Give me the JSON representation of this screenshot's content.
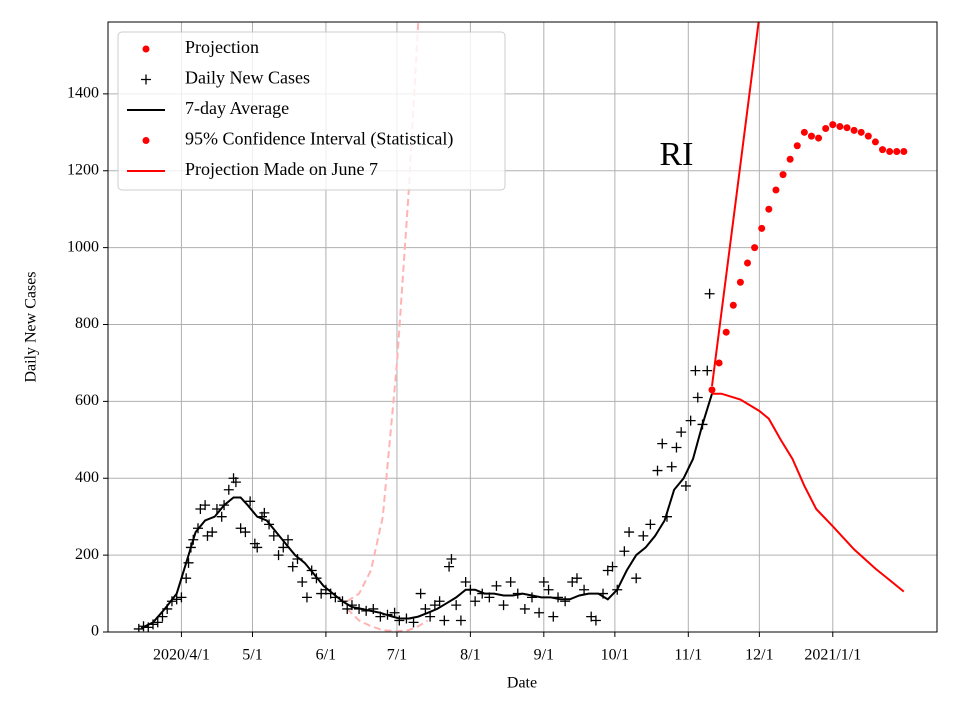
{
  "chart_data": {
    "type": "line",
    "xlabel": "Date",
    "ylabel": "Daily New Cases",
    "xlim": [
      "2020-03-01",
      "2021-02-14"
    ],
    "ylim": [
      0,
      1587
    ],
    "yticks": [
      0,
      200,
      400,
      600,
      800,
      1000,
      1200,
      1400
    ],
    "xticks": [
      {
        "value": "2020-04-01",
        "label": "2020/4/1"
      },
      {
        "value": "2020-05-01",
        "label": "5/1"
      },
      {
        "value": "2020-06-01",
        "label": "6/1"
      },
      {
        "value": "2020-07-01",
        "label": "7/1"
      },
      {
        "value": "2020-08-01",
        "label": "8/1"
      },
      {
        "value": "2020-09-01",
        "label": "9/1"
      },
      {
        "value": "2020-10-01",
        "label": "10/1"
      },
      {
        "value": "2020-11-01",
        "label": "11/1"
      },
      {
        "value": "2020-12-01",
        "label": "12/1"
      },
      {
        "value": "2021-01-01",
        "label": "2021/1/1"
      }
    ],
    "grid": true,
    "legend": "upper left",
    "annotations": [
      {
        "text": "RI",
        "x": "2020-10-27",
        "y": 1235
      }
    ],
    "series": [
      {
        "name": "Projection",
        "color": "#ff0000",
        "marker": "dot",
        "x": [
          "2020-11-11",
          "2020-11-14",
          "2020-11-17",
          "2020-11-20",
          "2020-11-23",
          "2020-11-26",
          "2020-11-29",
          "2020-12-02",
          "2020-12-05",
          "2020-12-08",
          "2020-12-11",
          "2020-12-14",
          "2020-12-17",
          "2020-12-20",
          "2020-12-23",
          "2020-12-26",
          "2020-12-29",
          "2021-01-01",
          "2021-01-04",
          "2021-01-07",
          "2021-01-10",
          "2021-01-13",
          "2021-01-16",
          "2021-01-19",
          "2021-01-22",
          "2021-01-25",
          "2021-01-28",
          "2021-01-31"
        ],
        "values": [
          630,
          700,
          780,
          850,
          910,
          960,
          1000,
          1050,
          1100,
          1150,
          1190,
          1230,
          1265,
          1300,
          1290,
          1285,
          1310,
          1320,
          1315,
          1312,
          1305,
          1300,
          1290,
          1275,
          1255,
          1250,
          1250,
          1250
        ]
      },
      {
        "name": "Daily New Cases",
        "color": "#000000",
        "marker": "plus",
        "x": [
          "2020-03-14",
          "2020-03-16",
          "2020-03-18",
          "2020-03-20",
          "2020-03-22",
          "2020-03-24",
          "2020-03-26",
          "2020-03-28",
          "2020-03-30",
          "2020-04-01",
          "2020-04-03",
          "2020-04-04",
          "2020-04-05",
          "2020-04-06",
          "2020-04-08",
          "2020-04-09",
          "2020-04-11",
          "2020-04-12",
          "2020-04-14",
          "2020-04-16",
          "2020-04-18",
          "2020-04-19",
          "2020-04-21",
          "2020-04-23",
          "2020-04-24",
          "2020-04-26",
          "2020-04-28",
          "2020-04-30",
          "2020-05-02",
          "2020-05-03",
          "2020-05-05",
          "2020-05-06",
          "2020-05-08",
          "2020-05-10",
          "2020-05-12",
          "2020-05-14",
          "2020-05-16",
          "2020-05-18",
          "2020-05-20",
          "2020-05-22",
          "2020-05-24",
          "2020-05-26",
          "2020-05-28",
          "2020-05-30",
          "2020-06-01",
          "2020-06-03",
          "2020-06-05",
          "2020-06-08",
          "2020-06-10",
          "2020-06-12",
          "2020-06-15",
          "2020-06-18",
          "2020-06-21",
          "2020-06-24",
          "2020-06-27",
          "2020-06-30",
          "2020-07-02",
          "2020-07-05",
          "2020-07-08",
          "2020-07-11",
          "2020-07-13",
          "2020-07-15",
          "2020-07-17",
          "2020-07-19",
          "2020-07-21",
          "2020-07-23",
          "2020-07-24",
          "2020-07-26",
          "2020-07-28",
          "2020-07-30",
          "2020-08-01",
          "2020-08-03",
          "2020-08-06",
          "2020-08-09",
          "2020-08-12",
          "2020-08-15",
          "2020-08-18",
          "2020-08-21",
          "2020-08-24",
          "2020-08-27",
          "2020-08-30",
          "2020-09-01",
          "2020-09-03",
          "2020-09-05",
          "2020-09-07",
          "2020-09-10",
          "2020-09-13",
          "2020-09-15",
          "2020-09-18",
          "2020-09-21",
          "2020-09-23",
          "2020-09-26",
          "2020-09-28",
          "2020-09-30",
          "2020-10-02",
          "2020-10-05",
          "2020-10-07",
          "2020-10-10",
          "2020-10-13",
          "2020-10-16",
          "2020-10-19",
          "2020-10-21",
          "2020-10-23",
          "2020-10-25",
          "2020-10-27",
          "2020-10-29",
          "2020-10-31",
          "2020-11-02",
          "2020-11-04",
          "2020-11-05",
          "2020-11-07",
          "2020-11-09",
          "2020-11-10"
        ],
        "values": [
          8,
          15,
          12,
          20,
          25,
          40,
          60,
          80,
          85,
          90,
          140,
          180,
          220,
          240,
          270,
          320,
          330,
          250,
          260,
          320,
          300,
          330,
          370,
          400,
          390,
          270,
          260,
          340,
          230,
          220,
          300,
          310,
          280,
          250,
          200,
          220,
          240,
          170,
          190,
          130,
          90,
          160,
          140,
          100,
          110,
          100,
          90,
          80,
          60,
          70,
          60,
          55,
          60,
          40,
          45,
          50,
          30,
          35,
          25,
          100,
          60,
          40,
          70,
          80,
          30,
          170,
          190,
          70,
          30,
          130,
          110,
          80,
          100,
          90,
          120,
          70,
          130,
          100,
          60,
          90,
          50,
          130,
          110,
          40,
          90,
          80,
          130,
          140,
          110,
          40,
          30,
          100,
          160,
          170,
          110,
          210,
          260,
          140,
          250,
          280,
          420,
          490,
          300,
          430,
          480,
          520,
          380,
          550,
          680,
          610,
          540,
          680,
          880
        ]
      },
      {
        "name": "7-day Average",
        "color": "#000000",
        "linestyle": "solid",
        "x": [
          "2020-03-15",
          "2020-03-20",
          "2020-03-25",
          "2020-03-30",
          "2020-04-03",
          "2020-04-07",
          "2020-04-11",
          "2020-04-15",
          "2020-04-19",
          "2020-04-23",
          "2020-04-26",
          "2020-04-29",
          "2020-05-03",
          "2020-05-07",
          "2020-05-11",
          "2020-05-15",
          "2020-05-19",
          "2020-05-23",
          "2020-05-27",
          "2020-05-31",
          "2020-06-04",
          "2020-06-08",
          "2020-06-12",
          "2020-06-16",
          "2020-06-20",
          "2020-06-24",
          "2020-06-28",
          "2020-07-02",
          "2020-07-06",
          "2020-07-10",
          "2020-07-14",
          "2020-07-18",
          "2020-07-22",
          "2020-07-26",
          "2020-07-30",
          "2020-08-03",
          "2020-08-07",
          "2020-08-11",
          "2020-08-15",
          "2020-08-19",
          "2020-08-23",
          "2020-08-27",
          "2020-08-31",
          "2020-09-04",
          "2020-09-08",
          "2020-09-12",
          "2020-09-16",
          "2020-09-20",
          "2020-09-24",
          "2020-09-28",
          "2020-10-02",
          "2020-10-06",
          "2020-10-10",
          "2020-10-14",
          "2020-10-18",
          "2020-10-22",
          "2020-10-26",
          "2020-10-30",
          "2020-11-03",
          "2020-11-07",
          "2020-11-11"
        ],
        "values": [
          10,
          25,
          60,
          100,
          180,
          260,
          290,
          300,
          330,
          350,
          350,
          330,
          300,
          290,
          260,
          230,
          200,
          180,
          150,
          120,
          100,
          80,
          65,
          60,
          55,
          50,
          42,
          35,
          35,
          40,
          50,
          60,
          75,
          90,
          110,
          110,
          100,
          100,
          95,
          95,
          100,
          95,
          90,
          90,
          85,
          85,
          95,
          100,
          100,
          85,
          110,
          160,
          200,
          220,
          250,
          290,
          370,
          400,
          450,
          540,
          620
        ]
      },
      {
        "name": "95% Confidence Interval (Statistical)",
        "color": "#ff0000",
        "marker": "dot",
        "line_color": "#ffb3b3",
        "linestyle": "dashed",
        "x": [
          "2020-06-10",
          "2020-06-15",
          "2020-06-20",
          "2020-06-25",
          "2020-07-01",
          "2020-07-06",
          "2020-07-10",
          "2020-07-14"
        ],
        "values": [
          80,
          100,
          160,
          300,
          700,
          1150,
          1590,
          null
        ],
        "lower": [
          60,
          30,
          15,
          5,
          2,
          5,
          15,
          30
        ]
      },
      {
        "name": "Projection Made on June 7",
        "color": "#ff0000",
        "linestyle": "solid",
        "x": [
          "2020-11-11",
          "2020-11-15",
          "2020-11-23",
          "2020-12-01",
          "2020-12-05",
          "2020-12-10",
          "2020-12-15",
          "2020-12-20",
          "2020-12-25",
          "2021-01-01",
          "2021-01-10",
          "2021-01-19",
          "2021-01-26",
          "2021-01-31",
          null,
          "2020-11-11",
          "2020-11-21",
          "2020-12-02"
        ],
        "values": [
          620,
          620,
          605,
          575,
          555,
          500,
          450,
          380,
          320,
          275,
          215,
          165,
          130,
          105,
          null,
          640,
          1120,
          1650
        ]
      }
    ]
  }
}
